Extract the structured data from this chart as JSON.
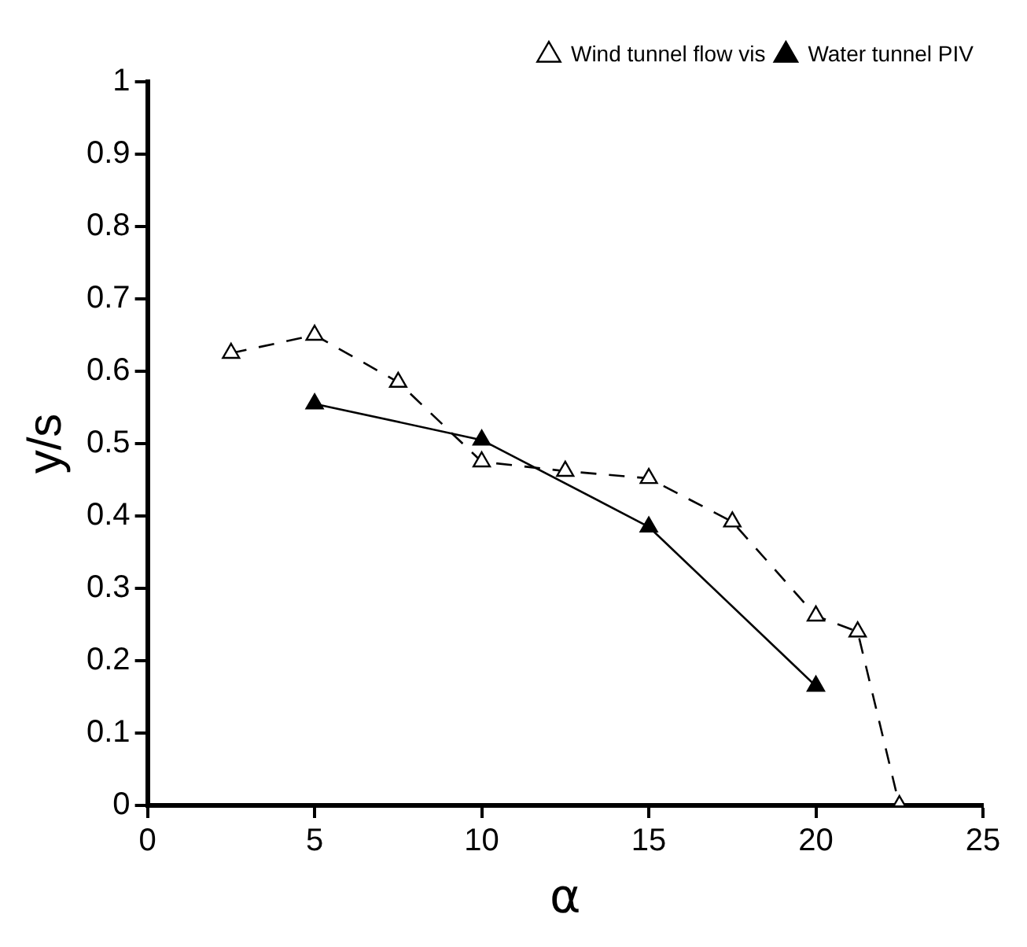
{
  "chart_data": {
    "type": "line",
    "xlabel": "α",
    "ylabel": "y/s",
    "xlim": [
      0,
      25
    ],
    "xticks": [
      0,
      5,
      10,
      15,
      20,
      25
    ],
    "ylim": [
      0,
      1
    ],
    "yticks": [
      0,
      0.1,
      0.2,
      0.3,
      0.4,
      0.5,
      0.6,
      0.7,
      0.8,
      0.9,
      1
    ],
    "grid": false,
    "legend": "top right",
    "series": [
      {
        "name": "Wind tunnel flow vis",
        "color": "#000000",
        "marker": "triangle",
        "line_style": "dashed",
        "x": [
          2.5,
          5,
          7.5,
          10,
          12.5,
          15,
          17.5,
          20,
          21.25,
          22.5
        ],
        "values": [
          0.625,
          0.65,
          0.585,
          0.475,
          0.462,
          0.452,
          0.392,
          0.262,
          0.24,
          0.0
        ]
      },
      {
        "name": "Water tunnel PIV",
        "color": "#000000",
        "marker": "triangle",
        "line_style": "solid",
        "x": [
          5,
          10,
          15,
          20
        ],
        "values": [
          0.555,
          0.505,
          0.385,
          0.165
        ]
      }
    ]
  }
}
